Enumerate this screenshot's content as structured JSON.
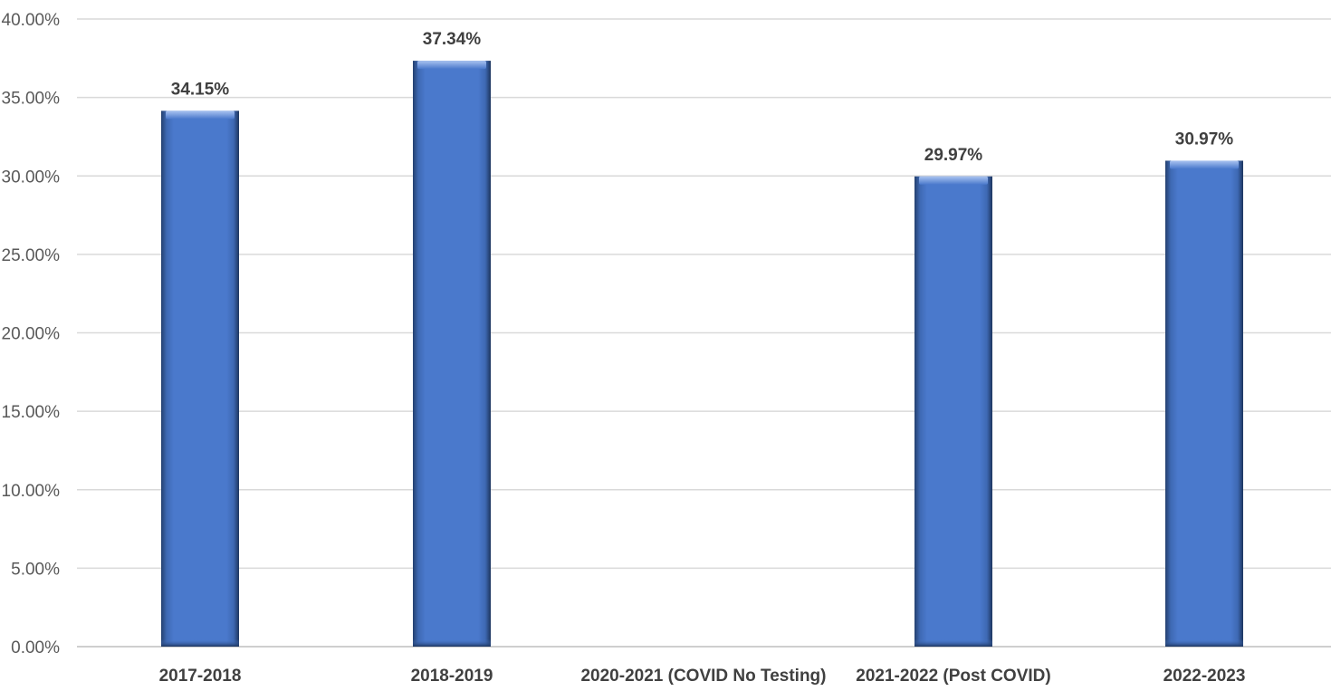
{
  "chart_data": {
    "type": "bar",
    "title": "",
    "xlabel": "",
    "ylabel": "",
    "categories": [
      "2017-2018",
      "2018-2019",
      "2020-2021 (COVID No Testing)",
      "2021-2022 (Post COVID)",
      "2022-2023"
    ],
    "values": [
      34.15,
      37.34,
      null,
      29.97,
      30.97
    ],
    "data_labels": [
      "34.15%",
      "37.34%",
      "",
      "29.97%",
      "30.97%"
    ],
    "ylim": [
      0,
      40
    ],
    "yticks": [
      0,
      5,
      10,
      15,
      20,
      25,
      30,
      35,
      40
    ],
    "ytick_labels": [
      "0.00%",
      "5.00%",
      "10.00%",
      "15.00%",
      "20.00%",
      "25.00%",
      "30.00%",
      "35.00%",
      "40.00%"
    ],
    "grid": true,
    "legend": "none",
    "bar_color": "#4472c4"
  }
}
